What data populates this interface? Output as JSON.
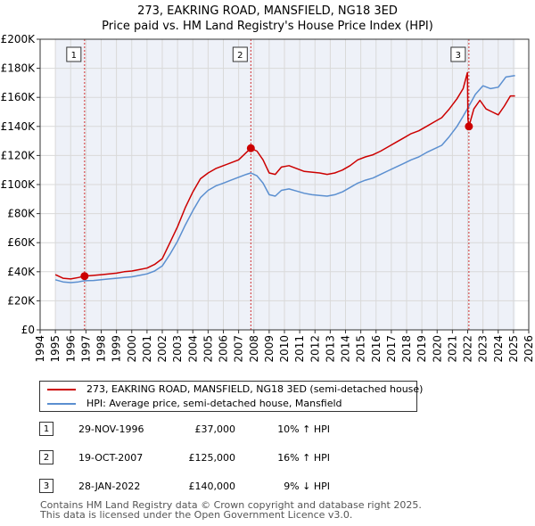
{
  "chart_data": {
    "type": "line",
    "title": "273, EAKRING ROAD, MANSFIELD, NG18 3ED",
    "subtitle": "Price paid vs. HM Land Registry's House Price Index (HPI)",
    "xlim": [
      1994,
      2026
    ],
    "ylim": [
      0,
      200000
    ],
    "x_ticks": [
      "1994",
      "1995",
      "1996",
      "1997",
      "1998",
      "1999",
      "2000",
      "2001",
      "2002",
      "2003",
      "2004",
      "2005",
      "2006",
      "2007",
      "2008",
      "2009",
      "2010",
      "2011",
      "2012",
      "2013",
      "2014",
      "2015",
      "2016",
      "2017",
      "2018",
      "2019",
      "2020",
      "2021",
      "2022",
      "2023",
      "2024",
      "2025",
      "2026"
    ],
    "y_ticks": [
      {
        "value": 0,
        "label": "£0"
      },
      {
        "value": 20000,
        "label": "£20K"
      },
      {
        "value": 40000,
        "label": "£40K"
      },
      {
        "value": 60000,
        "label": "£60K"
      },
      {
        "value": 80000,
        "label": "£80K"
      },
      {
        "value": 100000,
        "label": "£100K"
      },
      {
        "value": 120000,
        "label": "£120K"
      },
      {
        "value": 140000,
        "label": "£140K"
      },
      {
        "value": 160000,
        "label": "£160K"
      },
      {
        "value": 180000,
        "label": "£180K"
      },
      {
        "value": 200000,
        "label": "£200K"
      }
    ],
    "data_range": [
      1995,
      2025.1
    ],
    "series": [
      {
        "name": "273, EAKRING ROAD, MANSFIELD, NG18 3ED (semi-detached house)",
        "color": "#cc0000",
        "points": [
          [
            1995.0,
            38000
          ],
          [
            1995.5,
            35500
          ],
          [
            1996.0,
            35000
          ],
          [
            1996.5,
            36000
          ],
          [
            1996.91,
            37000
          ],
          [
            1997.5,
            37500
          ],
          [
            1998.0,
            38000
          ],
          [
            1998.5,
            38500
          ],
          [
            1999.0,
            39000
          ],
          [
            1999.5,
            40000
          ],
          [
            2000.0,
            40500
          ],
          [
            2000.5,
            41500
          ],
          [
            2001.0,
            42500
          ],
          [
            2001.5,
            45000
          ],
          [
            2002.0,
            49000
          ],
          [
            2002.5,
            60000
          ],
          [
            2003.0,
            71000
          ],
          [
            2003.5,
            84000
          ],
          [
            2004.0,
            95000
          ],
          [
            2004.5,
            104000
          ],
          [
            2005.0,
            108000
          ],
          [
            2005.5,
            111000
          ],
          [
            2006.0,
            113000
          ],
          [
            2006.5,
            115000
          ],
          [
            2007.0,
            117000
          ],
          [
            2007.5,
            122000
          ],
          [
            2007.8,
            125000
          ],
          [
            2008.2,
            123000
          ],
          [
            2008.6,
            117000
          ],
          [
            2009.0,
            108000
          ],
          [
            2009.4,
            107000
          ],
          [
            2009.8,
            112000
          ],
          [
            2010.3,
            113000
          ],
          [
            2010.8,
            111000
          ],
          [
            2011.3,
            109000
          ],
          [
            2011.8,
            108500
          ],
          [
            2012.3,
            108000
          ],
          [
            2012.8,
            107000
          ],
          [
            2013.3,
            108000
          ],
          [
            2013.8,
            110000
          ],
          [
            2014.3,
            113000
          ],
          [
            2014.8,
            117000
          ],
          [
            2015.3,
            119000
          ],
          [
            2015.8,
            120500
          ],
          [
            2016.3,
            123000
          ],
          [
            2016.8,
            126000
          ],
          [
            2017.3,
            129000
          ],
          [
            2017.8,
            132000
          ],
          [
            2018.3,
            135000
          ],
          [
            2018.8,
            137000
          ],
          [
            2019.3,
            140000
          ],
          [
            2019.8,
            143000
          ],
          [
            2020.3,
            146000
          ],
          [
            2020.8,
            152000
          ],
          [
            2021.3,
            159000
          ],
          [
            2021.7,
            166000
          ],
          [
            2021.98,
            177000
          ],
          [
            2022.02,
            145000
          ],
          [
            2022.08,
            140000
          ],
          [
            2022.4,
            152000
          ],
          [
            2022.8,
            158000
          ],
          [
            2023.2,
            152000
          ],
          [
            2023.6,
            150000
          ],
          [
            2024.0,
            148000
          ],
          [
            2024.4,
            154000
          ],
          [
            2024.8,
            161000
          ],
          [
            2025.1,
            161000
          ]
        ]
      },
      {
        "name": "HPI: Average price, semi-detached house, Mansfield",
        "color": "#5b8fd0",
        "points": [
          [
            1995.0,
            34500
          ],
          [
            1995.5,
            33000
          ],
          [
            1996.0,
            32500
          ],
          [
            1996.5,
            33000
          ],
          [
            1996.91,
            33800
          ],
          [
            1997.5,
            34000
          ],
          [
            1998.0,
            34500
          ],
          [
            1998.5,
            35000
          ],
          [
            1999.0,
            35500
          ],
          [
            1999.5,
            36000
          ],
          [
            2000.0,
            36500
          ],
          [
            2000.5,
            37500
          ],
          [
            2001.0,
            38500
          ],
          [
            2001.5,
            40500
          ],
          [
            2002.0,
            44000
          ],
          [
            2002.5,
            52000
          ],
          [
            2003.0,
            61000
          ],
          [
            2003.5,
            72000
          ],
          [
            2004.0,
            82000
          ],
          [
            2004.5,
            91000
          ],
          [
            2005.0,
            96000
          ],
          [
            2005.5,
            99000
          ],
          [
            2006.0,
            101000
          ],
          [
            2006.5,
            103000
          ],
          [
            2007.0,
            105000
          ],
          [
            2007.5,
            107000
          ],
          [
            2007.8,
            108000
          ],
          [
            2008.2,
            106000
          ],
          [
            2008.6,
            101000
          ],
          [
            2009.0,
            93000
          ],
          [
            2009.4,
            92000
          ],
          [
            2009.8,
            96000
          ],
          [
            2010.3,
            97000
          ],
          [
            2010.8,
            95500
          ],
          [
            2011.3,
            94000
          ],
          [
            2011.8,
            93000
          ],
          [
            2012.3,
            92500
          ],
          [
            2012.8,
            92000
          ],
          [
            2013.3,
            93000
          ],
          [
            2013.8,
            95000
          ],
          [
            2014.3,
            98000
          ],
          [
            2014.8,
            101000
          ],
          [
            2015.3,
            103000
          ],
          [
            2015.8,
            104500
          ],
          [
            2016.3,
            107000
          ],
          [
            2016.8,
            109500
          ],
          [
            2017.3,
            112000
          ],
          [
            2017.8,
            114500
          ],
          [
            2018.3,
            117000
          ],
          [
            2018.8,
            119000
          ],
          [
            2019.3,
            122000
          ],
          [
            2019.8,
            124500
          ],
          [
            2020.3,
            127000
          ],
          [
            2020.8,
            133000
          ],
          [
            2021.3,
            140000
          ],
          [
            2021.7,
            147000
          ],
          [
            2022.08,
            154000
          ],
          [
            2022.5,
            162000
          ],
          [
            2023.0,
            168000
          ],
          [
            2023.5,
            166000
          ],
          [
            2024.0,
            167000
          ],
          [
            2024.5,
            174000
          ],
          [
            2025.1,
            175000
          ]
        ]
      }
    ],
    "sales": [
      {
        "id": "1",
        "x": 1996.91,
        "price": 37000,
        "date": "29-NOV-1996",
        "price_label": "£37,000",
        "hpi": "10% ↑ HPI"
      },
      {
        "id": "2",
        "x": 2007.8,
        "price": 125000,
        "date": "19-OCT-2007",
        "price_label": "£125,000",
        "hpi": "16% ↑ HPI"
      },
      {
        "id": "3",
        "x": 2022.08,
        "price": 140000,
        "date": "28-JAN-2022",
        "price_label": "£140,000",
        "hpi": "9% ↓ HPI"
      }
    ],
    "legend_position": "below"
  },
  "footer": {
    "line1": "Contains HM Land Registry data © Crown copyright and database right 2025.",
    "line2": "This data is licensed under the Open Government Licence v3.0."
  }
}
